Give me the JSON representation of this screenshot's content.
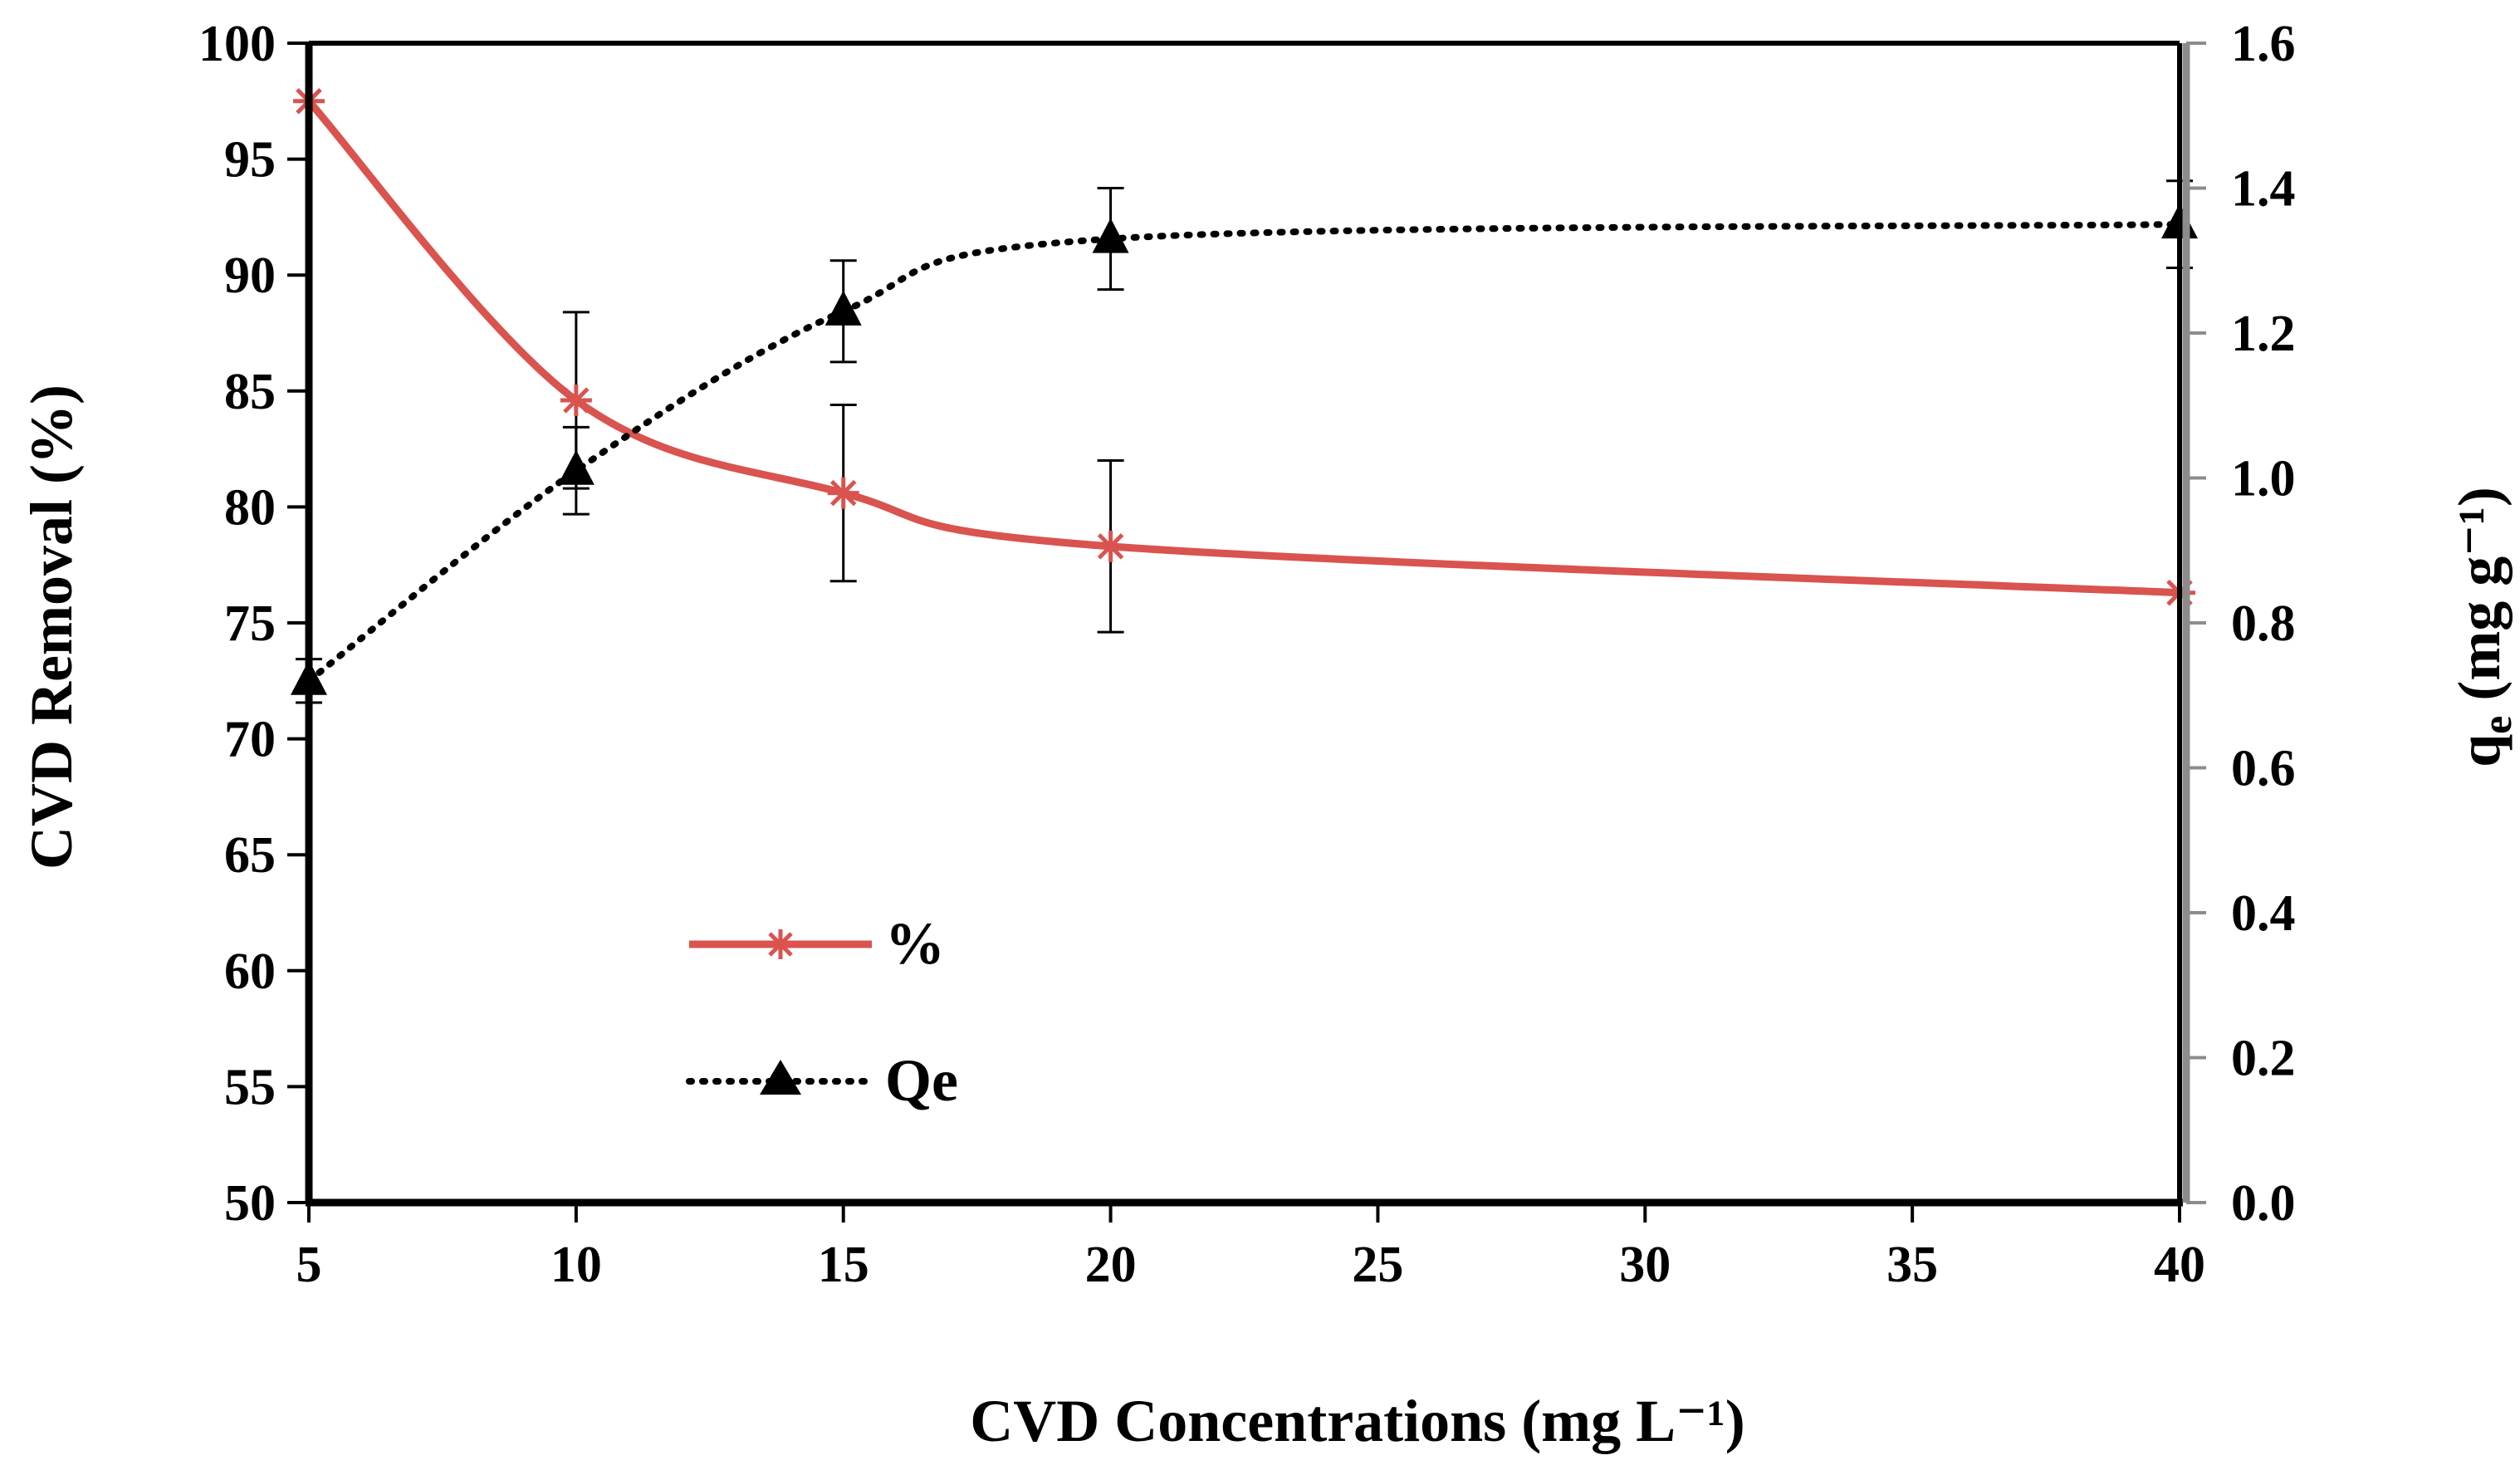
{
  "chart_data": {
    "type": "line",
    "title": "",
    "xlabel": "CVD Concentrations (mg L⁻¹)",
    "ylabel": "CVD Removal  (%)",
    "y2label": {
      "base": "q",
      "sub": "e",
      "unit": " (mg g⁻¹)"
    },
    "categories": [
      "5",
      "10",
      "15",
      "20",
      "25",
      "30",
      "35",
      "40"
    ],
    "ylim": [
      50,
      100
    ],
    "yticks": [
      "50",
      "55",
      "60",
      "65",
      "70",
      "75",
      "80",
      "85",
      "90",
      "95",
      "100"
    ],
    "y2lim": [
      0.0,
      1.6
    ],
    "y2ticks": [
      "0.0",
      "0.2",
      "0.4",
      "0.6",
      "0.8",
      "1.0",
      "1.2",
      "1.4",
      "1.6"
    ],
    "series": [
      {
        "name": "%",
        "axis": "left",
        "color": "#d9534f",
        "style": "solid",
        "marker": "asterisk",
        "x": [
          5,
          10,
          15,
          20,
          40
        ],
        "values": [
          97.5,
          84.6,
          80.6,
          78.3,
          76.3
        ],
        "error": [
          0,
          3.8,
          3.8,
          3.7,
          0
        ]
      },
      {
        "name": "Qe",
        "axis": "right",
        "color": "#000000",
        "style": "dotted",
        "marker": "triangle",
        "x": [
          5,
          10,
          15,
          20,
          40
        ],
        "values": [
          0.72,
          1.01,
          1.23,
          1.33,
          1.35
        ],
        "error": [
          0.03,
          0.06,
          0.07,
          0.07,
          0.06
        ]
      }
    ],
    "legend_position": "center-left"
  }
}
